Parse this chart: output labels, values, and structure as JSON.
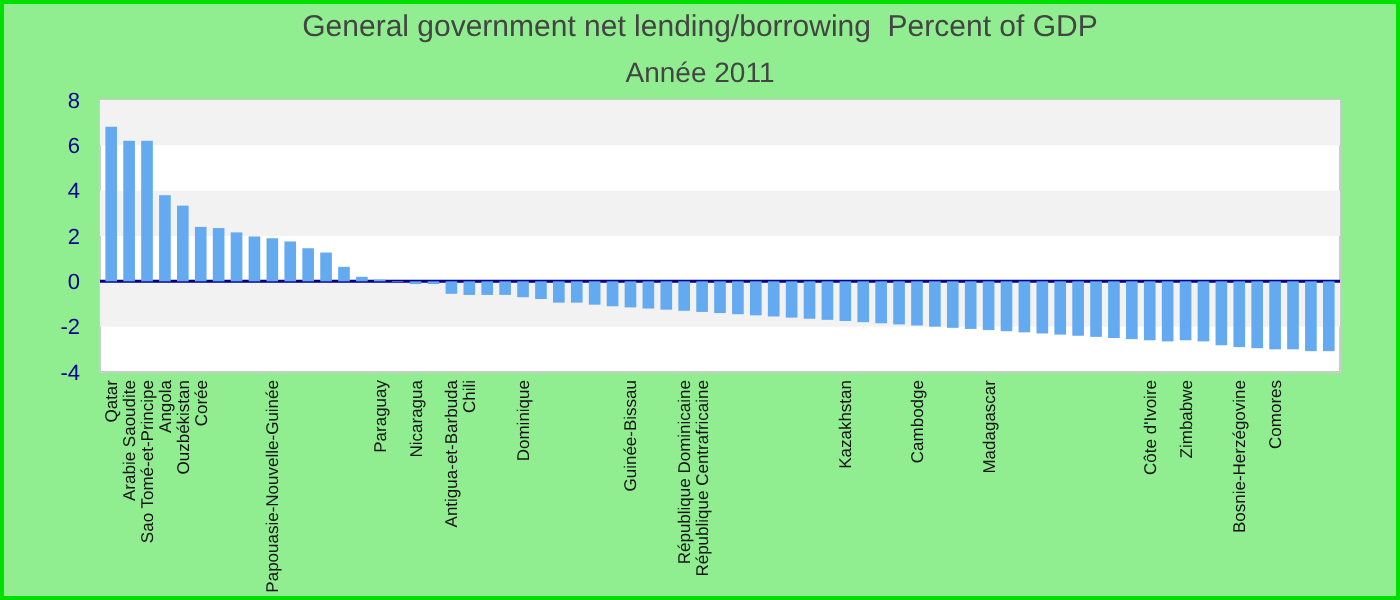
{
  "chart_data": {
    "type": "bar",
    "title": "General government net lending/borrowing  Percent of GDP",
    "subtitle": "Année 2011",
    "categories": [
      "Qatar",
      "Arabie Saoudite",
      "Sao Tomé-et-Principe",
      "Angola",
      "Ouzbékistan",
      "Corée",
      null,
      null,
      null,
      "Papouasie-Nouvelle-Guinée",
      null,
      null,
      null,
      null,
      null,
      "Paraguay",
      null,
      "Nicaragua",
      null,
      "Antigua-et-Barbuda",
      "Chili",
      null,
      null,
      "Dominique",
      null,
      null,
      null,
      null,
      null,
      "Guinée-Bissau",
      null,
      null,
      "République Dominicaine",
      "République Centrafricaine",
      null,
      null,
      null,
      null,
      null,
      null,
      null,
      "Kazakhstan",
      null,
      null,
      null,
      "Cambodge",
      null,
      null,
      null,
      "Madagascar",
      null,
      null,
      null,
      null,
      null,
      null,
      null,
      null,
      "Côte d'Ivoire",
      null,
      "Zimbabwe",
      null,
      null,
      "Bosnie-Herzégovine",
      null,
      "Comores",
      null,
      null,
      null
    ],
    "values": [
      6.82,
      6.2,
      6.2,
      3.8,
      3.34,
      2.4,
      2.35,
      2.16,
      1.98,
      1.9,
      1.76,
      1.46,
      1.27,
      0.64,
      0.2,
      0.07,
      -0.03,
      -0.12,
      -0.12,
      -0.55,
      -0.6,
      -0.6,
      -0.6,
      -0.7,
      -0.78,
      -0.94,
      -0.94,
      -1.03,
      -1.1,
      -1.15,
      -1.2,
      -1.25,
      -1.3,
      -1.35,
      -1.4,
      -1.45,
      -1.5,
      -1.55,
      -1.6,
      -1.65,
      -1.7,
      -1.75,
      -1.8,
      -1.85,
      -1.9,
      -1.95,
      -2.0,
      -2.05,
      -2.1,
      -2.15,
      -2.2,
      -2.25,
      -2.3,
      -2.35,
      -2.4,
      -2.45,
      -2.5,
      -2.55,
      -2.6,
      -2.65,
      -2.6,
      -2.65,
      -2.82,
      -2.9,
      -2.95,
      -3.0,
      -3.0,
      -3.08,
      -3.08
    ],
    "color": "#64aaf0",
    "ylim": [
      -4,
      8
    ],
    "yticks": [
      -4,
      -2,
      0,
      2,
      4,
      6,
      8
    ],
    "bands": [
      {
        "axis": "y",
        "from": 6,
        "to": 8,
        "color": "#f2f2f2"
      },
      {
        "axis": "y",
        "from": 2,
        "to": 4,
        "color": "#f2f2f2"
      },
      {
        "axis": "y",
        "from": -2,
        "to": 0,
        "color": "#f2f2f2"
      }
    ],
    "ref_lines": [
      {
        "axis": "y",
        "value": 0,
        "color": "#00008b"
      }
    ]
  }
}
